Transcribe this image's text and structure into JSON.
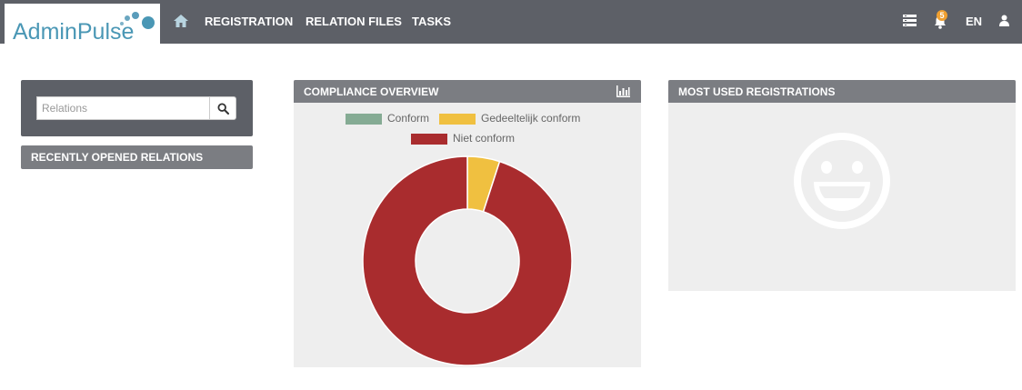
{
  "app": {
    "logo_text": "AdminPulse",
    "brand_color": "#4a97b5"
  },
  "nav": {
    "home_icon": "home-icon",
    "items": [
      "REGISTRATION",
      "RELATION FILES",
      "TASKS"
    ]
  },
  "topbar_right": {
    "list_icon": "list-icon",
    "notification_icon": "bell-icon",
    "notification_count": "5",
    "language": "EN",
    "user_icon": "user-icon"
  },
  "search": {
    "placeholder": "Relations",
    "button_icon": "search-icon"
  },
  "panels": {
    "recent_title": "RECENTLY OPENED RELATIONS",
    "compliance_title": "COMPLIANCE OVERVIEW",
    "compliance_icon": "bar-chart-icon",
    "most_used_title": "MOST USED REGISTRATIONS",
    "empty_icon": "smiley-icon"
  },
  "chart_data": {
    "type": "pie",
    "categories": [
      "Conform",
      "Gedeeltelijk conform",
      "Niet conform"
    ],
    "values": [
      0,
      5,
      95
    ],
    "colors": [
      "#85ab94",
      "#f0c040",
      "#a92c2e"
    ],
    "legend_position": "top"
  }
}
